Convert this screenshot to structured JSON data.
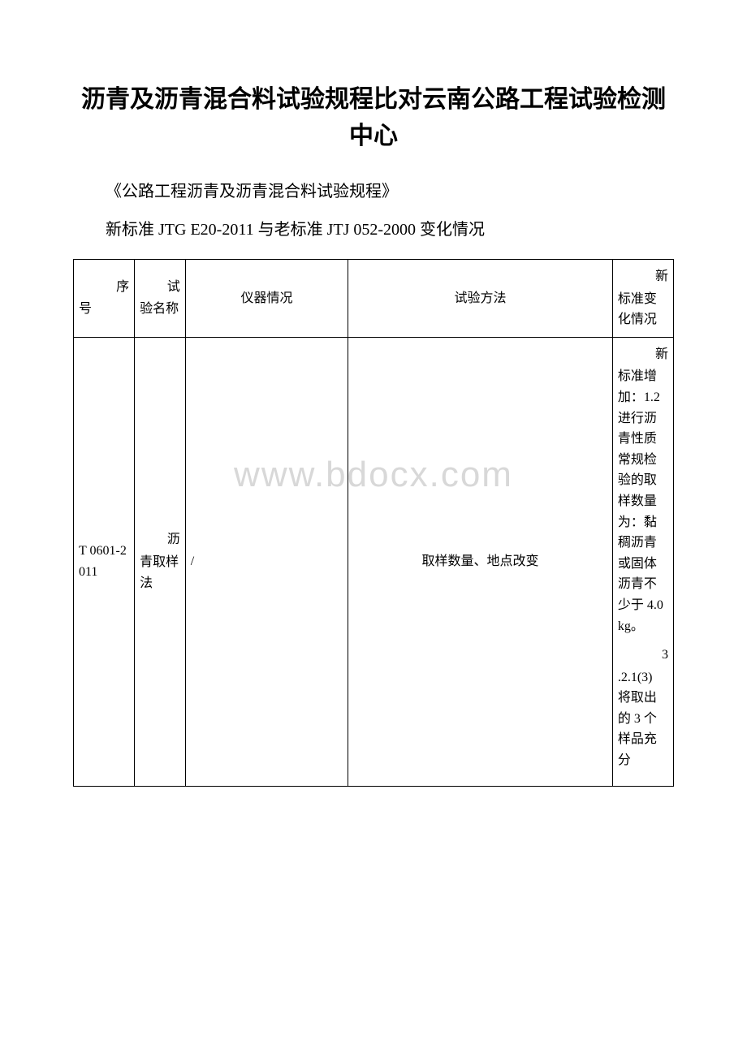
{
  "title": "沥青及沥青混合料试验规程比对云南公路工程试验检测中心",
  "subtitle1": "《公路工程沥青及沥青混合料试验规程》",
  "subtitle2": "新标准 JTG E20-2011 与老标准 JTJ 052-2000 变化情况",
  "watermark": "www.bdocx.com",
  "table": {
    "headers": {
      "col1_sup": "序",
      "col1": "号",
      "col2_sup": "试",
      "col2": "验名称",
      "col3": "仪器情况",
      "col4": "试验方法",
      "col5_sup": "新",
      "col5": "标准变化情况"
    },
    "row1": {
      "col1": "T 0601-2011",
      "col2_sup": "沥",
      "col2": "青取样法",
      "col3": "/",
      "col4": "取样数量、地点改变",
      "col5_p1_sup": "新",
      "col5_p1": "标准增加：1.2 进行沥青性质常规检验的取样数量为：黏稠沥青或固体沥青不少于 4.0kg。",
      "col5_p2_sup": "3",
      "col5_p2": ".2.1(3) 将取出的 3 个样品充分"
    }
  },
  "colors": {
    "text": "#000000",
    "border": "#000000",
    "background": "#ffffff",
    "watermark": "#d8d8d8"
  },
  "fonts": {
    "title_size": 30,
    "subtitle_size": 20,
    "body_size": 16,
    "watermark_size": 44
  }
}
